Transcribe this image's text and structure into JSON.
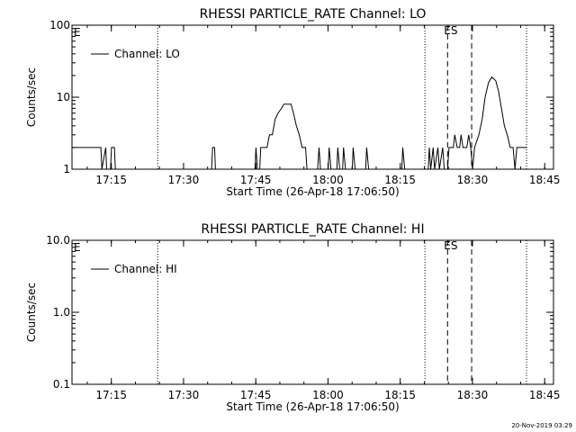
{
  "chart_data": [
    {
      "type": "line",
      "title": "RHESSI PARTICLE_RATE Channel: LO",
      "xlabel": "Start Time (26-Apr-18 17:06:50)",
      "ylabel": "Counts/sec",
      "yscale": "log",
      "ylim": [
        1,
        100
      ],
      "y_ticks": [
        "1",
        "10",
        "100"
      ],
      "xlim_minutes": [
        0,
        100
      ],
      "x_ticks": [
        "17:15",
        "17:30",
        "17:45",
        "18:00",
        "18:15",
        "18:30",
        "18:45"
      ],
      "x_tick_minutes": [
        8.17,
        23.17,
        38.17,
        53.17,
        68.17,
        83.17,
        98.17
      ],
      "legend": {
        "label": "Channel: LO",
        "placement": "top-left"
      },
      "markers": {
        "dotted_minutes": [
          17.8,
          73.3,
          94.4
        ],
        "dashed_minutes": [
          78.0,
          83.0
        ],
        "es_label": "ES",
        "corner_label": "E"
      },
      "series": [
        {
          "name": "Channel: LO",
          "points": [
            [
              0,
              2
            ],
            [
              6,
              2
            ],
            [
              6.2,
              1
            ],
            [
              7,
              2
            ],
            [
              7.2,
              1
            ],
            [
              8,
              1
            ],
            [
              8.2,
              2
            ],
            [
              8.8,
              2
            ],
            [
              9,
              1
            ],
            [
              29,
              1
            ],
            [
              29.2,
              2
            ],
            [
              29.6,
              2
            ],
            [
              29.8,
              1
            ],
            [
              38,
              1
            ],
            [
              38.2,
              2
            ],
            [
              38.5,
              1
            ],
            [
              39,
              1
            ],
            [
              39.2,
              2
            ],
            [
              40.5,
              2
            ],
            [
              41,
              3
            ],
            [
              41.6,
              3
            ],
            [
              42.2,
              5
            ],
            [
              42.8,
              6
            ],
            [
              43.5,
              7
            ],
            [
              44,
              8
            ],
            [
              45.5,
              8
            ],
            [
              46,
              6
            ],
            [
              46.6,
              4
            ],
            [
              47.2,
              3
            ],
            [
              47.8,
              2
            ],
            [
              48.5,
              2
            ],
            [
              48.8,
              1
            ],
            [
              51,
              1
            ],
            [
              51.3,
              2
            ],
            [
              51.6,
              1
            ],
            [
              53.2,
              1
            ],
            [
              53.4,
              2
            ],
            [
              53.8,
              1
            ],
            [
              55,
              1
            ],
            [
              55.2,
              2
            ],
            [
              55.6,
              1
            ],
            [
              56.2,
              1
            ],
            [
              56.4,
              2
            ],
            [
              56.8,
              1
            ],
            [
              58.2,
              1
            ],
            [
              58.4,
              2
            ],
            [
              58.8,
              1
            ],
            [
              61,
              1
            ],
            [
              61.2,
              2
            ],
            [
              61.6,
              1
            ],
            [
              68.5,
              1
            ],
            [
              68.7,
              2
            ],
            [
              69.1,
              1
            ],
            [
              74,
              1
            ],
            [
              74.2,
              2
            ],
            [
              74.5,
              1
            ],
            [
              75,
              2
            ],
            [
              75.3,
              1
            ],
            [
              76,
              2
            ],
            [
              76.3,
              1
            ],
            [
              77,
              2
            ],
            [
              77.3,
              1
            ],
            [
              78,
              1
            ],
            [
              78.3,
              2
            ],
            [
              79.2,
              2
            ],
            [
              79.5,
              3
            ],
            [
              80,
              2
            ],
            [
              80.5,
              2
            ],
            [
              80.8,
              3
            ],
            [
              81.2,
              2
            ],
            [
              82,
              2
            ],
            [
              82.4,
              3
            ],
            [
              82.8,
              2
            ],
            [
              83.2,
              1
            ],
            [
              83.6,
              2
            ],
            [
              84.5,
              3
            ],
            [
              85.2,
              5
            ],
            [
              85.8,
              10
            ],
            [
              86.5,
              16
            ],
            [
              87.2,
              19
            ],
            [
              88,
              17
            ],
            [
              88.6,
              12
            ],
            [
              89.2,
              7
            ],
            [
              89.8,
              4
            ],
            [
              90.4,
              3
            ],
            [
              91,
              2
            ],
            [
              91.6,
              2
            ],
            [
              92,
              1
            ],
            [
              92.4,
              2
            ],
            [
              94.5,
              2
            ]
          ]
        }
      ]
    },
    {
      "type": "line",
      "title": "RHESSI PARTICLE_RATE Channel: HI",
      "xlabel": "Start Time (26-Apr-18 17:06:50)",
      "ylabel": "Counts/sec",
      "yscale": "log",
      "ylim": [
        0.1,
        10
      ],
      "y_ticks": [
        "0.1",
        "1.0",
        "10.0"
      ],
      "xlim_minutes": [
        0,
        100
      ],
      "x_ticks": [
        "17:15",
        "17:30",
        "17:45",
        "18:00",
        "18:15",
        "18:30",
        "18:45"
      ],
      "x_tick_minutes": [
        8.17,
        23.17,
        38.17,
        53.17,
        68.17,
        83.17,
        98.17
      ],
      "legend": {
        "label": "Channel: HI",
        "placement": "top-left"
      },
      "markers": {
        "dotted_minutes": [
          17.8,
          73.3,
          94.4
        ],
        "dashed_minutes": [
          78.0,
          83.0
        ],
        "es_label": "ES",
        "corner_label": "E"
      },
      "series": [
        {
          "name": "Channel: HI",
          "points": []
        }
      ]
    }
  ],
  "footer": {
    "timestamp": "20-Nov-2019 03:29"
  }
}
